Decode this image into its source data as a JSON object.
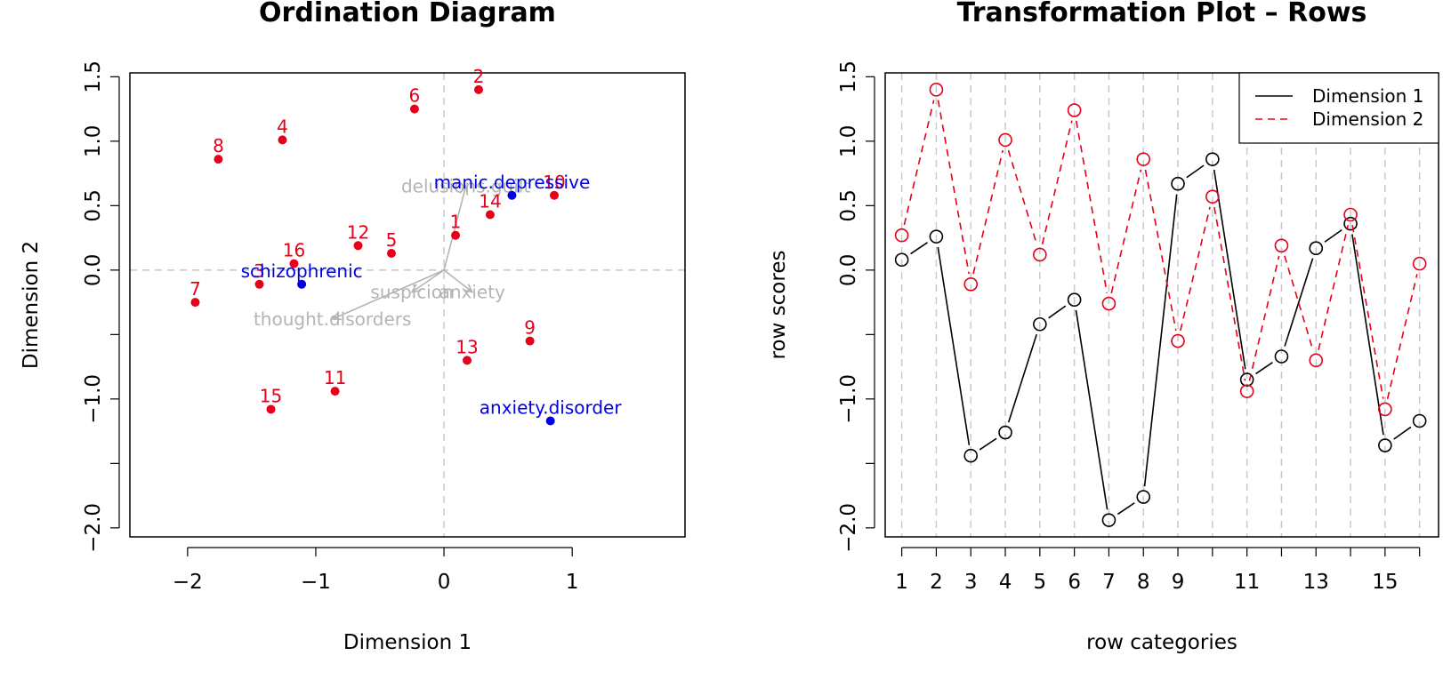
{
  "chart_data": [
    {
      "type": "scatter",
      "title": "Ordination Diagram",
      "xlabel": "Dimension 1",
      "ylabel": "Dimension 2",
      "xlim": [
        -2.45,
        1.88
      ],
      "ylim": [
        -2.07,
        1.53
      ],
      "xticks": [
        -2,
        -1,
        0,
        1
      ],
      "xtick_labels": [
        "−2",
        "−1",
        "0",
        "1"
      ],
      "yticks": [
        -2.0,
        -1.5,
        -1.0,
        -0.5,
        0.0,
        0.5,
        1.0,
        1.5
      ],
      "ytick_labels": [
        "−2.0",
        "",
        "−1.0",
        "",
        "0.0",
        "0.5",
        "1.0",
        "1.5"
      ],
      "reference_lines": {
        "x": 0,
        "y": 0
      },
      "colors": {
        "rows": "#e6001a",
        "columns": "#0000e6",
        "biplot_arrows": "#b4b4b4"
      },
      "series": [
        {
          "name": "",
          "role": "rows",
          "points": [
            {
              "label": "1",
              "x": 0.09,
              "y": 0.27
            },
            {
              "label": "2",
              "x": 0.27,
              "y": 1.4
            },
            {
              "label": "3",
              "x": -1.44,
              "y": -0.11
            },
            {
              "label": "4",
              "x": -1.26,
              "y": 1.01
            },
            {
              "label": "5",
              "x": -0.41,
              "y": 0.13
            },
            {
              "label": "6",
              "x": -0.23,
              "y": 1.25
            },
            {
              "label": "7",
              "x": -1.94,
              "y": -0.25
            },
            {
              "label": "8",
              "x": -1.76,
              "y": 0.86
            },
            {
              "label": "9",
              "x": 0.67,
              "y": -0.55
            },
            {
              "label": "10",
              "x": 0.86,
              "y": 0.58
            },
            {
              "label": "11",
              "x": -0.85,
              "y": -0.94
            },
            {
              "label": "12",
              "x": -0.67,
              "y": 0.19
            },
            {
              "label": "13",
              "x": 0.18,
              "y": -0.7
            },
            {
              "label": "14",
              "x": 0.36,
              "y": 0.43
            },
            {
              "label": "15",
              "x": -1.35,
              "y": -1.08
            },
            {
              "label": "16",
              "x": -1.17,
              "y": 0.05
            }
          ]
        },
        {
          "name": "",
          "role": "columns",
          "points": [
            {
              "label": "schizophrenic",
              "x": -1.11,
              "y": -0.11
            },
            {
              "label": "manic.depressive",
              "x": 0.53,
              "y": 0.58
            },
            {
              "label": "anxiety.disorder",
              "x": 0.83,
              "y": -1.17
            }
          ]
        }
      ],
      "biplot_arrows": [
        {
          "label": "delusions.guilt",
          "x": 0.17,
          "y": 0.65
        },
        {
          "label": "suspicion",
          "x": -0.25,
          "y": -0.17
        },
        {
          "label": "anxiety",
          "x": 0.22,
          "y": -0.17
        },
        {
          "label": "thought.disorders",
          "x": -0.87,
          "y": -0.38
        }
      ]
    },
    {
      "type": "line",
      "title": "Transformation Plot – Rows",
      "xlabel": "row categories",
      "ylabel": "row scores",
      "xlim": [
        0.52,
        16.55
      ],
      "ylim": [
        -2.07,
        1.53
      ],
      "categories": [
        1,
        2,
        3,
        4,
        5,
        6,
        7,
        8,
        9,
        10,
        11,
        12,
        13,
        14,
        15,
        16
      ],
      "xtick_labels": [
        "1",
        "2",
        "3",
        "4",
        "5",
        "6",
        "7",
        "8",
        "9",
        "",
        "11",
        "",
        "13",
        "",
        "15",
        ""
      ],
      "yticks": [
        -2.0,
        -1.5,
        -1.0,
        -0.5,
        0.0,
        0.5,
        1.0,
        1.5
      ],
      "ytick_labels": [
        "−2.0",
        "",
        "−1.0",
        "",
        "0.0",
        "0.5",
        "1.0",
        "1.5"
      ],
      "legend_position": "top-right",
      "series": [
        {
          "name": "Dimension 1",
          "color": "#000000",
          "linestyle": "solid",
          "values": [
            0.08,
            0.26,
            -1.44,
            -1.26,
            -0.42,
            -0.23,
            -1.94,
            -1.76,
            0.67,
            0.86,
            -0.85,
            -0.67,
            0.17,
            0.36,
            -1.36,
            -1.17
          ]
        },
        {
          "name": "Dimension 2",
          "color": "#e6001a",
          "linestyle": "dashed",
          "values": [
            0.27,
            1.4,
            -0.11,
            1.01,
            0.12,
            1.24,
            -0.26,
            0.86,
            -0.55,
            0.57,
            -0.94,
            0.19,
            -0.7,
            0.43,
            -1.08,
            0.05
          ]
        }
      ]
    }
  ]
}
